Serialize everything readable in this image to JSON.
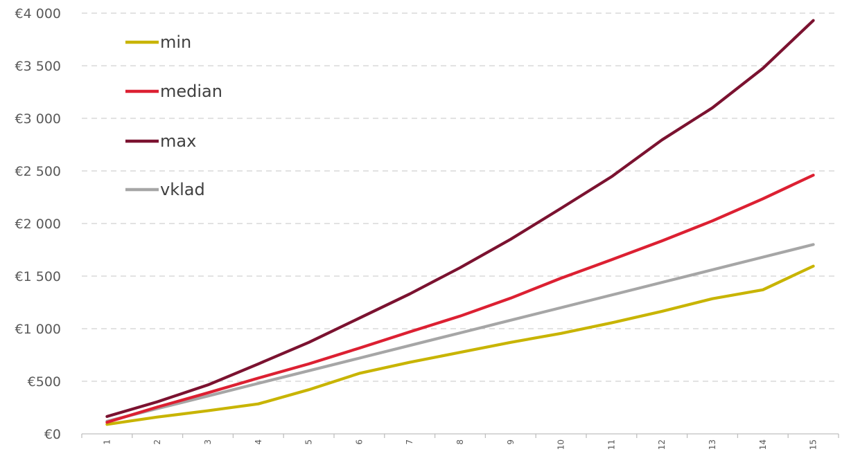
{
  "chart_data": {
    "type": "line",
    "title": "",
    "xlabel": "",
    "ylabel": "",
    "x": [
      "1",
      "2",
      "3",
      "4",
      "5",
      "6",
      "7",
      "8",
      "9",
      "10",
      "11",
      "12",
      "13",
      "14",
      "15"
    ],
    "ylim": [
      0,
      4000
    ],
    "yticks": [
      0,
      500,
      1000,
      1500,
      2000,
      2500,
      3000,
      3500,
      4000
    ],
    "ytick_labels": [
      "€0",
      "€500",
      "€1 000",
      "€1 500",
      "€2 000",
      "€2 500",
      "€3 000",
      "€3 500",
      "€4 000"
    ],
    "grid": true,
    "legend_position": "top-left",
    "series": [
      {
        "name": "min",
        "color": "#c8b400",
        "values": [
          90,
          160,
          220,
          285,
          420,
          575,
          680,
          775,
          870,
          955,
          1055,
          1165,
          1285,
          1370,
          1595
        ]
      },
      {
        "name": "median",
        "color": "#dc2032",
        "values": [
          110,
          255,
          390,
          530,
          665,
          815,
          970,
          1120,
          1290,
          1480,
          1655,
          1835,
          2025,
          2235,
          2460
        ]
      },
      {
        "name": "max",
        "color": "#7b1230",
        "values": [
          165,
          305,
          465,
          665,
          870,
          1100,
          1330,
          1580,
          1850,
          2145,
          2445,
          2795,
          3100,
          3475,
          3930
        ]
      },
      {
        "name": "vklad",
        "color": "#a6a6a6",
        "values": [
          120,
          240,
          360,
          480,
          600,
          720,
          840,
          960,
          1080,
          1200,
          1320,
          1440,
          1560,
          1680,
          1800
        ]
      }
    ]
  }
}
